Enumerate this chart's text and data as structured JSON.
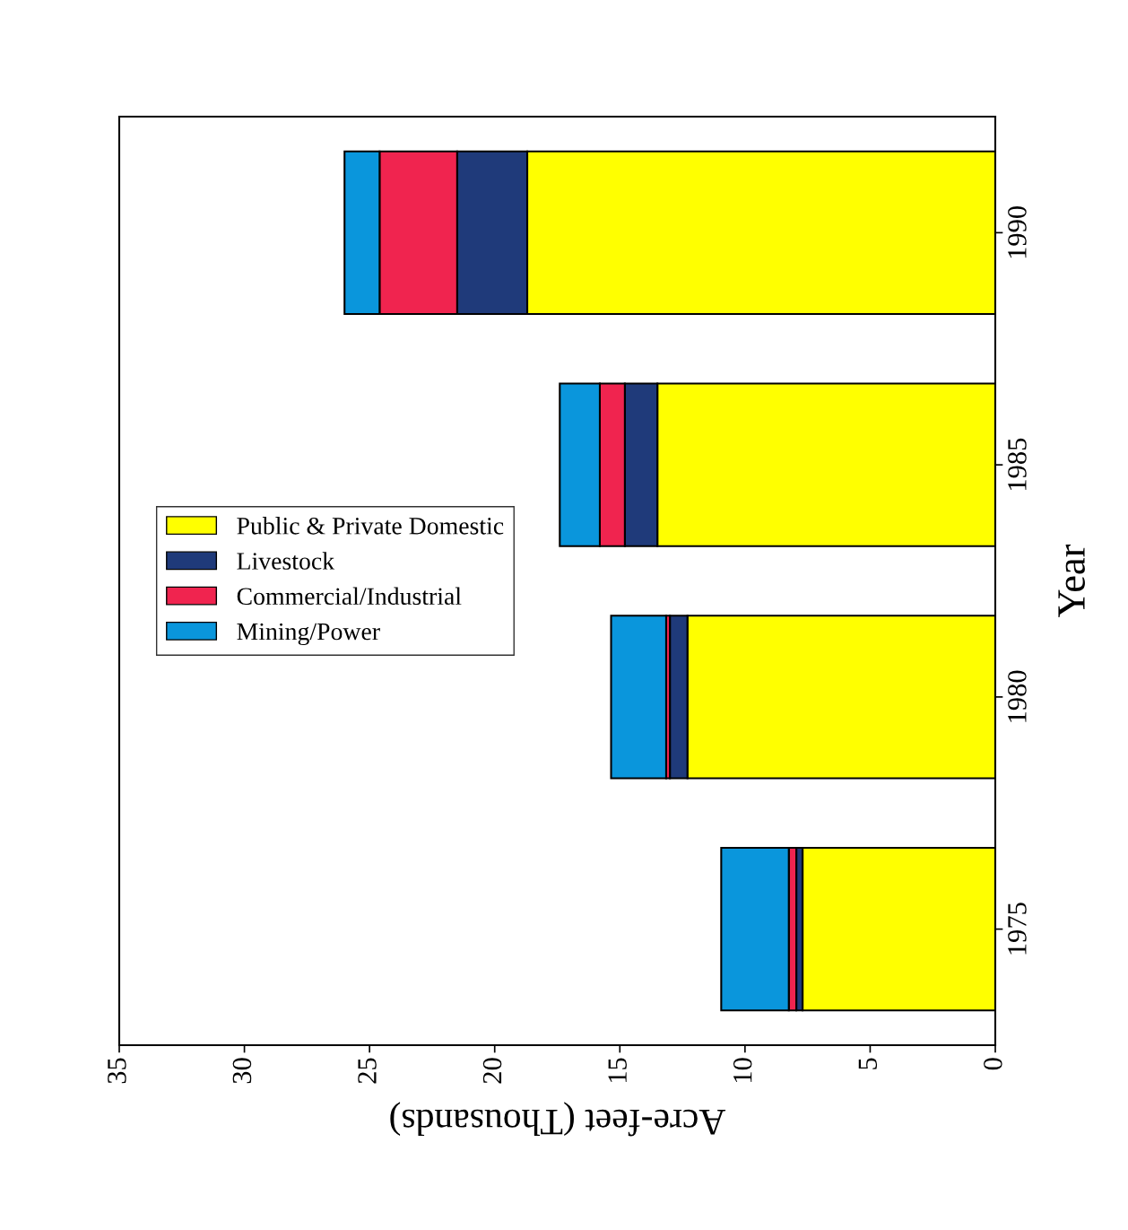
{
  "chart_data": {
    "type": "bar",
    "orientation": "horizontal",
    "stacked": true,
    "xlabel": "Acre-feet (Thousands)",
    "ylabel": "Year",
    "categories": [
      "1990",
      "1985",
      "1980",
      "1975"
    ],
    "series": [
      {
        "name": "Public & Private Domestic",
        "color": "#ffff00",
        "values": [
          18.7,
          13.5,
          12.3,
          7.7
        ]
      },
      {
        "name": "Livestock",
        "color": "#1f3a7a",
        "values": [
          2.8,
          1.3,
          0.7,
          0.25
        ]
      },
      {
        "name": "Commercial/Industrial",
        "color": "#f0244f",
        "values": [
          3.1,
          1.0,
          0.15,
          0.3
        ]
      },
      {
        "name": "Mining/Power",
        "color": "#0a96dc",
        "values": [
          1.4,
          1.6,
          2.2,
          2.7
        ]
      }
    ],
    "xlim": [
      35,
      0
    ],
    "xticks": [
      35,
      30,
      25,
      20,
      15,
      10,
      5,
      0
    ],
    "grid": false,
    "legend": "left"
  }
}
